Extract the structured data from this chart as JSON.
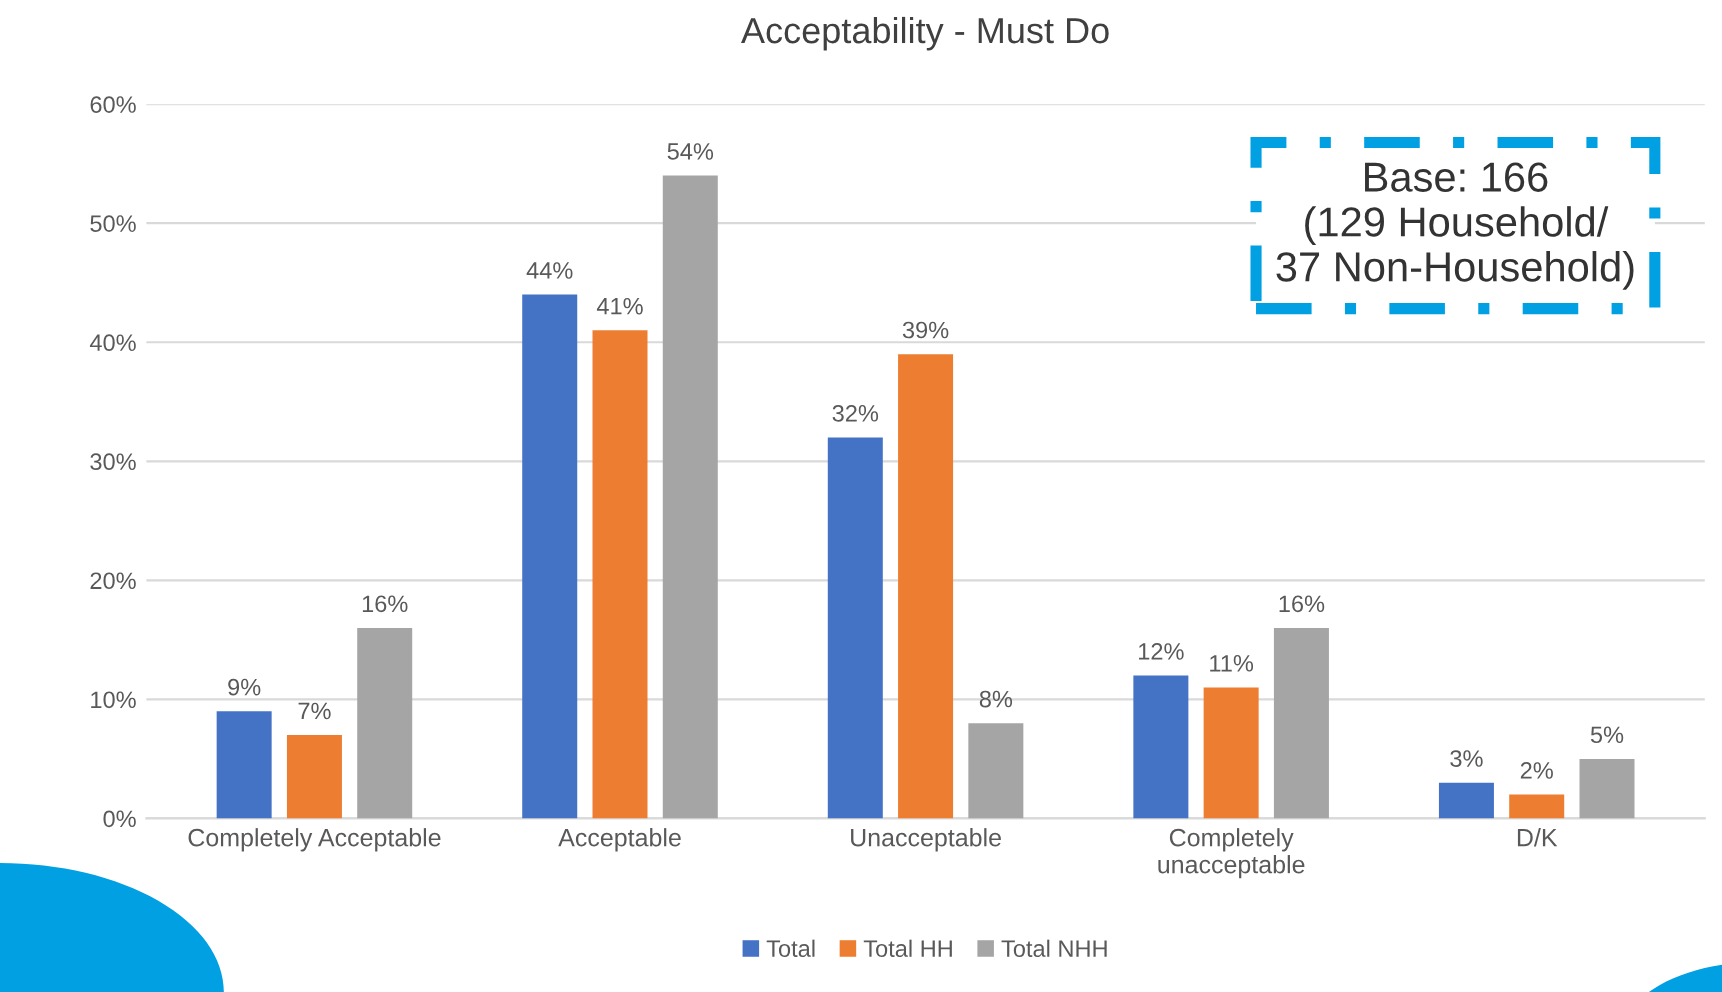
{
  "chart_data": {
    "type": "bar",
    "title": "Acceptability - Must Do",
    "categories": [
      "Completely Acceptable",
      "Acceptable",
      "Unacceptable",
      "Completely\nunacceptable",
      "D/K"
    ],
    "series": [
      {
        "name": "Total",
        "color": "#4472c4",
        "values": [
          9,
          44,
          32,
          12,
          3
        ]
      },
      {
        "name": "Total HH",
        "color": "#ed7d31",
        "values": [
          7,
          41,
          39,
          11,
          2
        ]
      },
      {
        "name": "Total NHH",
        "color": "#a5a5a5",
        "values": [
          16,
          54,
          8,
          16,
          5
        ]
      }
    ],
    "ylim": [
      0,
      60
    ],
    "yticks": [
      {
        "value": 0,
        "label": "0%"
      },
      {
        "value": 10,
        "label": "10%"
      },
      {
        "value": 20,
        "label": "20%"
      },
      {
        "value": 30,
        "label": "30%"
      },
      {
        "value": 40,
        "label": "40%"
      },
      {
        "value": 50,
        "label": "50%"
      },
      {
        "value": 60,
        "label": "60%"
      }
    ],
    "value_labels": [
      [
        "9%",
        "44%",
        "32%",
        "12%",
        "3%"
      ],
      [
        "7%",
        "41%",
        "39%",
        "11%",
        "2%"
      ],
      [
        "16%",
        "54%",
        "8%",
        "16%",
        "5%"
      ]
    ],
    "grid": "y",
    "legend": "bottom",
    "annotations": [
      "Base: 166\n(129 Household/\n37 Non-Household)"
    ]
  }
}
